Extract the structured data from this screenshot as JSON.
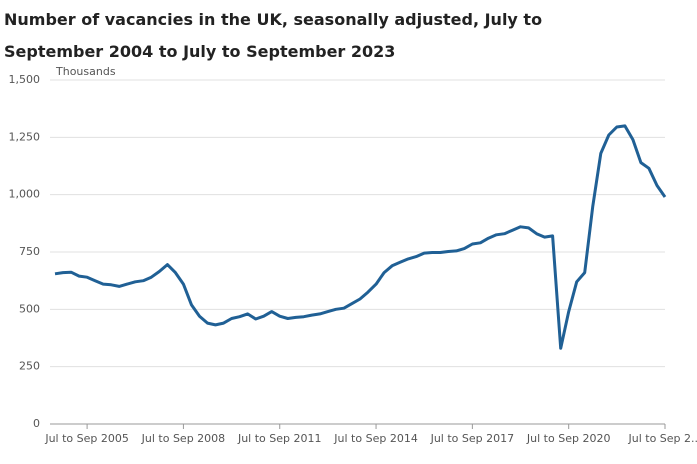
{
  "chart_data": {
    "type": "line",
    "title": "Number of vacancies in the UK, seasonally adjusted, July to September 2004 to July to September 2023",
    "y_label": "Thousands",
    "categories": [
      null,
      null,
      null,
      null,
      "Jul to Sep 2005",
      null,
      null,
      null,
      null,
      null,
      null,
      null,
      null,
      null,
      null,
      null,
      "Jul to Sep 2008",
      null,
      null,
      null,
      null,
      null,
      null,
      null,
      null,
      null,
      null,
      null,
      "Jul to Sep 2011",
      null,
      null,
      null,
      null,
      null,
      null,
      null,
      null,
      null,
      null,
      null,
      "Jul to Sep 2014",
      null,
      null,
      null,
      null,
      null,
      null,
      null,
      null,
      null,
      null,
      null,
      "Jul to Sep 2017",
      null,
      null,
      null,
      null,
      null,
      null,
      null,
      null,
      null,
      null,
      null,
      "Jul to Sep 2020",
      null,
      null,
      null,
      null,
      null,
      null,
      null,
      null,
      null,
      null,
      null,
      "Jul to Sep 2..."
    ],
    "series": [
      {
        "name": "Vacancies",
        "color": "#206095",
        "values": [
          655,
          660,
          662,
          645,
          640,
          625,
          610,
          607,
          600,
          610,
          620,
          625,
          640,
          665,
          695,
          660,
          610,
          520,
          470,
          440,
          432,
          440,
          460,
          468,
          480,
          458,
          470,
          490,
          470,
          460,
          465,
          468,
          475,
          480,
          490,
          500,
          505,
          525,
          545,
          575,
          610,
          660,
          690,
          705,
          720,
          730,
          745,
          748,
          748,
          752,
          755,
          765,
          785,
          790,
          810,
          825,
          830,
          845,
          860,
          855,
          830,
          815,
          820,
          330,
          490,
          620,
          660,
          950,
          1180,
          1260,
          1295,
          1300,
          1240,
          1140,
          1115,
          1040,
          990
        ]
      }
    ],
    "ylim": [
      0,
      1500
    ],
    "yticks": [
      0,
      250,
      500,
      750,
      {
        "value": 1000,
        "label": "1,000"
      },
      {
        "value": 1250,
        "label": "1,250"
      },
      {
        "value": 1500,
        "label": "1,500"
      }
    ],
    "grid": true
  }
}
